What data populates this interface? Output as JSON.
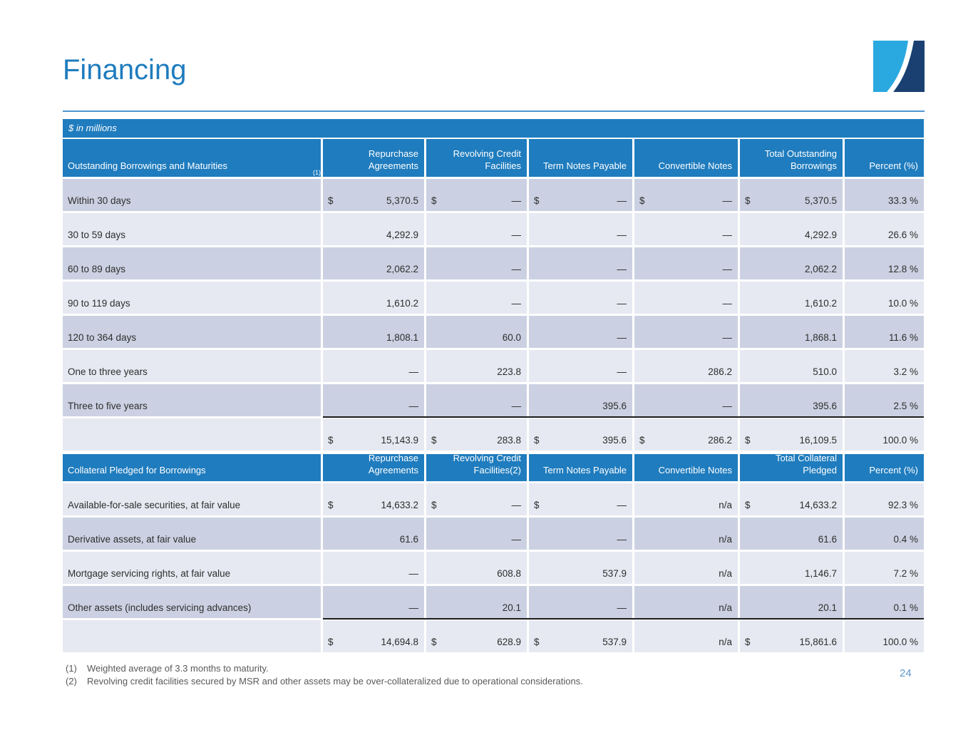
{
  "page": {
    "title": "Financing",
    "units_label": "$ in millions",
    "page_number": "24",
    "footnotes": [
      {
        "num": "(1)",
        "text": "Weighted average of 3.3 months to maturity."
      },
      {
        "num": "(2)",
        "text": "Revolving credit facilities secured by MSR and other assets may be over-collateralized due to operational considerations."
      }
    ]
  },
  "colors": {
    "accent_blue": "#1f7cbe",
    "row_dark": "#cbd1e2",
    "row_light": "#e6e9f1",
    "hairline_blue": "#4f94cf",
    "footnote_gray": "#595959",
    "page_number_blue": "#5f97c8",
    "logo_light_blue": "#2aa9e0",
    "logo_navy": "#1a4071"
  },
  "logo": {
    "name": "two-tone-swoosh-square-logo"
  },
  "tables": [
    {
      "header": {
        "label": "Outstanding Borrowings and Maturities",
        "label_sup": "(1)",
        "cols": [
          "Repurchase Agreements",
          "Revolving Credit Facilities",
          "Term Notes Payable",
          "Convertible Notes",
          "Total Outstanding Borrowings",
          "Percent (%)"
        ]
      },
      "rows": [
        {
          "label": "Within 30 days",
          "shade": "dark",
          "cells": [
            {
              "p": "$",
              "v": "5,370.5"
            },
            {
              "p": "$",
              "v": "—"
            },
            {
              "p": "$",
              "v": "—"
            },
            {
              "p": "$",
              "v": "—"
            },
            {
              "p": "$",
              "v": "5,370.5"
            },
            {
              "v": "33.3 %"
            }
          ]
        },
        {
          "label": "30 to 59 days",
          "shade": "light",
          "cells": [
            {
              "v": "4,292.9"
            },
            {
              "v": "—"
            },
            {
              "v": "—"
            },
            {
              "v": "—"
            },
            {
              "v": "4,292.9"
            },
            {
              "v": "26.6 %"
            }
          ]
        },
        {
          "label": "60 to 89 days",
          "shade": "dark",
          "cells": [
            {
              "v": "2,062.2"
            },
            {
              "v": "—"
            },
            {
              "v": "—"
            },
            {
              "v": "—"
            },
            {
              "v": "2,062.2"
            },
            {
              "v": "12.8 %"
            }
          ]
        },
        {
          "label": "90 to 119 days",
          "shade": "light",
          "cells": [
            {
              "v": "1,610.2"
            },
            {
              "v": "—"
            },
            {
              "v": "—"
            },
            {
              "v": "—"
            },
            {
              "v": "1,610.2"
            },
            {
              "v": "10.0 %"
            }
          ]
        },
        {
          "label": "120 to 364 days",
          "shade": "dark",
          "cells": [
            {
              "v": "1,808.1"
            },
            {
              "v": "60.0"
            },
            {
              "v": "—"
            },
            {
              "v": "—"
            },
            {
              "v": "1,868.1"
            },
            {
              "v": "11.6 %"
            }
          ]
        },
        {
          "label": "One to three years",
          "shade": "light",
          "cells": [
            {
              "v": "—"
            },
            {
              "v": "223.8"
            },
            {
              "v": "—"
            },
            {
              "v": "286.2"
            },
            {
              "v": "510.0"
            },
            {
              "v": "3.2 %"
            }
          ]
        },
        {
          "label": "Three to five years",
          "shade": "dark",
          "cells": [
            {
              "v": "—"
            },
            {
              "v": "—"
            },
            {
              "v": "395.6"
            },
            {
              "v": "—"
            },
            {
              "v": "395.6"
            },
            {
              "v": "2.5 %"
            }
          ]
        },
        {
          "label": "",
          "shade": "light",
          "total": true,
          "cells": [
            {
              "p": "$",
              "v": "15,143.9"
            },
            {
              "p": "$",
              "v": "283.8"
            },
            {
              "p": "$",
              "v": "395.6"
            },
            {
              "p": "$",
              "v": "286.2"
            },
            {
              "p": "$",
              "v": "16,109.5"
            },
            {
              "v": "100.0 %"
            }
          ]
        }
      ]
    },
    {
      "header": {
        "label": "Collateral Pledged for Borrowings",
        "cols": [
          "Repurchase Agreements",
          "Revolving Credit Facilities(2)",
          "Term Notes Payable",
          "Convertible Notes",
          "Total Collateral Pledged",
          "Percent (%)"
        ]
      },
      "rows": [
        {
          "label": "Available-for-sale securities, at fair value",
          "shade": "light",
          "cells": [
            {
              "p": "$",
              "v": "14,633.2"
            },
            {
              "p": "$",
              "v": "—"
            },
            {
              "p": "$",
              "v": "—"
            },
            {
              "v": "n/a"
            },
            {
              "p": "$",
              "v": "14,633.2"
            },
            {
              "v": "92.3 %"
            }
          ]
        },
        {
          "label": "Derivative assets, at fair value",
          "shade": "dark",
          "cells": [
            {
              "v": "61.6"
            },
            {
              "v": "—"
            },
            {
              "v": "—"
            },
            {
              "v": "n/a"
            },
            {
              "v": "61.6"
            },
            {
              "v": "0.4 %"
            }
          ]
        },
        {
          "label": "Mortgage servicing rights, at fair value",
          "shade": "light",
          "cells": [
            {
              "v": "—"
            },
            {
              "v": "608.8"
            },
            {
              "v": "537.9"
            },
            {
              "v": "n/a"
            },
            {
              "v": "1,146.7"
            },
            {
              "v": "7.2 %"
            }
          ]
        },
        {
          "label": "Other assets (includes servicing advances)",
          "shade": "dark",
          "cells": [
            {
              "v": "—"
            },
            {
              "v": "20.1"
            },
            {
              "v": "—"
            },
            {
              "v": "n/a"
            },
            {
              "v": "20.1"
            },
            {
              "v": "0.1 %"
            }
          ]
        },
        {
          "label": "",
          "shade": "light",
          "total": true,
          "cells": [
            {
              "p": "$",
              "v": "14,694.8"
            },
            {
              "p": "$",
              "v": "628.9"
            },
            {
              "p": "$",
              "v": "537.9"
            },
            {
              "v": "n/a"
            },
            {
              "p": "$",
              "v": "15,861.6"
            },
            {
              "v": "100.0 %"
            }
          ]
        }
      ]
    }
  ]
}
